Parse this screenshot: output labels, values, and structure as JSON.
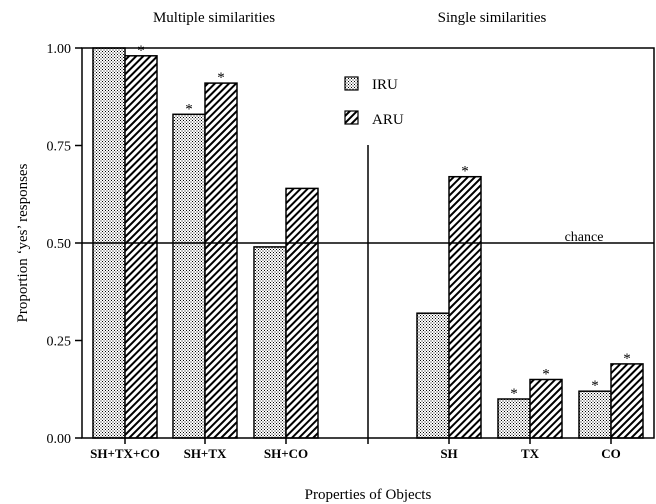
{
  "chart_data": {
    "type": "bar",
    "categories": [
      "SH+TX+CO",
      "SH+TX",
      "SH+CO",
      "SH",
      "TX",
      "CO"
    ],
    "series": [
      {
        "name": "IRU",
        "values": [
          1.0,
          0.83,
          0.49,
          0.32,
          0.1,
          0.12
        ],
        "significant": [
          false,
          true,
          false,
          false,
          true,
          true
        ]
      },
      {
        "name": "ARU",
        "values": [
          0.98,
          0.91,
          0.64,
          0.67,
          0.15,
          0.19
        ],
        "significant": [
          true,
          true,
          false,
          true,
          true,
          true
        ]
      }
    ],
    "group_titles": [
      "Multiple similarities",
      "Single similarities"
    ],
    "significance_marker": "*",
    "xlabel": "Properties of Objects",
    "ylabel": "Proportion ‘yes’ responses",
    "ylim": [
      0,
      1
    ],
    "yticks": [
      "0.00",
      "0.25",
      "0.50",
      "0.75",
      "1.00"
    ],
    "reference_line": {
      "value": 0.5,
      "label": "chance"
    },
    "legend_position": "top-center",
    "grid": false
  }
}
